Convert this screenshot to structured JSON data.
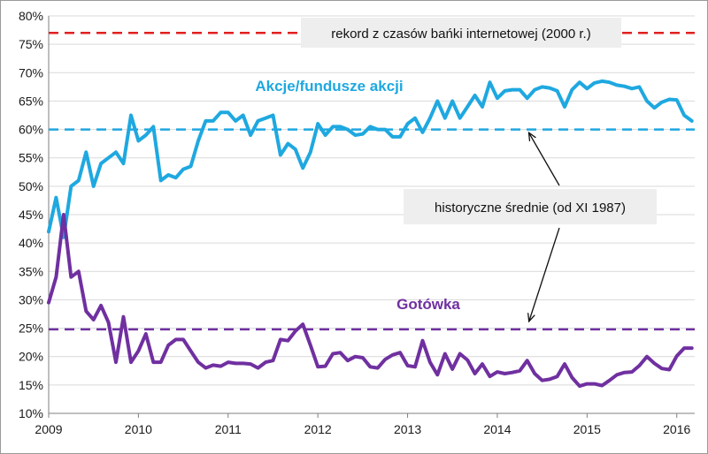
{
  "chart_data": {
    "type": "line",
    "title": "",
    "xlabel": "",
    "ylabel": "",
    "xlim": [
      2009.0,
      2016.2
    ],
    "ylim": [
      10,
      80
    ],
    "grid": "horizontal",
    "y_tick_labels": [
      "10%",
      "15%",
      "20%",
      "25%",
      "30%",
      "35%",
      "40%",
      "45%",
      "50%",
      "55%",
      "60%",
      "65%",
      "70%",
      "75%",
      "80%"
    ],
    "x_tick_labels": [
      "2009",
      "2010",
      "2011",
      "2012",
      "2013",
      "2014",
      "2015",
      "2016"
    ],
    "series": [
      {
        "name": "Akcje/fundusze akcji",
        "color": "#1fa8e0",
        "x": [
          2009.0,
          2009.083,
          2009.167,
          2009.25,
          2009.333,
          2009.417,
          2009.5,
          2009.583,
          2009.667,
          2009.75,
          2009.833,
          2009.917,
          2010.0,
          2010.083,
          2010.167,
          2010.25,
          2010.333,
          2010.417,
          2010.5,
          2010.583,
          2010.667,
          2010.75,
          2010.833,
          2010.917,
          2011.0,
          2011.083,
          2011.167,
          2011.25,
          2011.333,
          2011.417,
          2011.5,
          2011.583,
          2011.667,
          2011.75,
          2011.833,
          2011.917,
          2012.0,
          2012.083,
          2012.167,
          2012.25,
          2012.333,
          2012.417,
          2012.5,
          2012.583,
          2012.667,
          2012.75,
          2012.833,
          2012.917,
          2013.0,
          2013.083,
          2013.167,
          2013.25,
          2013.333,
          2013.417,
          2013.5,
          2013.583,
          2013.667,
          2013.75,
          2013.833,
          2013.917,
          2014.0,
          2014.083,
          2014.167,
          2014.25,
          2014.333,
          2014.417,
          2014.5,
          2014.583,
          2014.667,
          2014.75,
          2014.833,
          2014.917,
          2015.0,
          2015.083,
          2015.167,
          2015.25,
          2015.333,
          2015.417,
          2015.5,
          2015.583,
          2015.667,
          2015.75,
          2015.833,
          2015.917,
          2016.0,
          2016.083,
          2016.167
        ],
        "values": [
          42,
          48,
          41,
          50,
          51,
          56,
          50,
          54,
          55,
          56,
          54,
          62.5,
          58,
          59,
          60.5,
          51,
          52,
          51.5,
          53,
          53.5,
          58,
          61.5,
          61.5,
          63,
          63,
          61.5,
          62.5,
          59,
          61.5,
          62,
          62.5,
          55.5,
          57.5,
          56.5,
          53.2,
          56,
          61,
          59,
          60.5,
          60.5,
          60,
          59,
          59.2,
          60.5,
          60,
          60,
          58.7,
          58.7,
          61,
          62,
          59.5,
          62,
          65,
          62,
          65,
          62,
          64,
          66,
          64,
          68.3,
          65.5,
          66.8,
          67,
          67,
          65.5,
          67,
          67.5,
          67.3,
          66.8,
          64,
          67,
          68.3,
          67.2,
          68.2,
          68.5,
          68.3,
          67.8,
          67.6,
          67.2,
          67.5,
          65,
          63.8,
          64.8,
          65.3,
          65.2,
          62.5,
          61.5
        ]
      },
      {
        "name": "Gotówka",
        "color": "#7030a0",
        "x": [
          2009.0,
          2009.083,
          2009.167,
          2009.25,
          2009.333,
          2009.417,
          2009.5,
          2009.583,
          2009.667,
          2009.75,
          2009.833,
          2009.917,
          2010.0,
          2010.083,
          2010.167,
          2010.25,
          2010.333,
          2010.417,
          2010.5,
          2010.583,
          2010.667,
          2010.75,
          2010.833,
          2010.917,
          2011.0,
          2011.083,
          2011.167,
          2011.25,
          2011.333,
          2011.417,
          2011.5,
          2011.583,
          2011.667,
          2011.75,
          2011.833,
          2011.917,
          2012.0,
          2012.083,
          2012.167,
          2012.25,
          2012.333,
          2012.417,
          2012.5,
          2012.583,
          2012.667,
          2012.75,
          2012.833,
          2012.917,
          2013.0,
          2013.083,
          2013.167,
          2013.25,
          2013.333,
          2013.417,
          2013.5,
          2013.583,
          2013.667,
          2013.75,
          2013.833,
          2013.917,
          2014.0,
          2014.083,
          2014.167,
          2014.25,
          2014.333,
          2014.417,
          2014.5,
          2014.583,
          2014.667,
          2014.75,
          2014.833,
          2014.917,
          2015.0,
          2015.083,
          2015.167,
          2015.25,
          2015.333,
          2015.417,
          2015.5,
          2015.583,
          2015.667,
          2015.75,
          2015.833,
          2015.917,
          2016.0,
          2016.083,
          2016.167
        ],
        "values": [
          29.5,
          34,
          45,
          34,
          35,
          28,
          26.5,
          29,
          26,
          19,
          27,
          19,
          21,
          24,
          19,
          19,
          22,
          23,
          23,
          21,
          19,
          18,
          18.5,
          18.3,
          19,
          18.8,
          18.8,
          18.7,
          18,
          19,
          19.3,
          23,
          22.8,
          24.5,
          25.7,
          22,
          18.2,
          18.3,
          20.5,
          20.7,
          19.3,
          20,
          19.8,
          18.2,
          18,
          19.5,
          20.3,
          20.7,
          18.4,
          18.2,
          22.8,
          19,
          16.8,
          20.5,
          17.8,
          20.5,
          19.4,
          17,
          18.7,
          16.5,
          17.3,
          17,
          17.2,
          17.5,
          19.3,
          17,
          15.8,
          16,
          16.5,
          18.7,
          16.3,
          14.8,
          15.2,
          15.2,
          14.9,
          15.8,
          16.8,
          17.2,
          17.3,
          18.4,
          20,
          18.8,
          17.9,
          17.7,
          20.1,
          21.5,
          21.5
        ]
      }
    ],
    "reference_lines": [
      {
        "id": "record",
        "value": 77,
        "color": "#e02020"
      },
      {
        "id": "avg-stocks",
        "value": 60,
        "color": "#1fa8e0"
      },
      {
        "id": "avg-cash",
        "value": 24.8,
        "color": "#7030a0"
      }
    ],
    "annotations": {
      "record_label": "rekord z czasów bańki internetowej (2000 r.)",
      "averages_label": "historyczne średnie (od XI 1987)",
      "stocks_label": "Akcje/fundusze akcji",
      "cash_label": "Gotówka"
    }
  }
}
